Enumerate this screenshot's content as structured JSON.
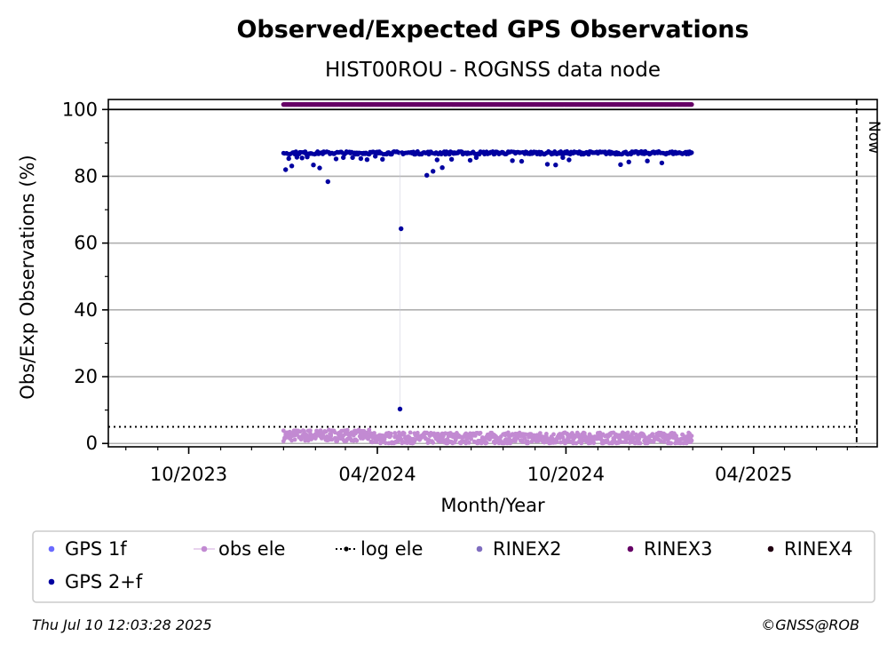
{
  "title": "Observed/Expected GPS Observations",
  "subtitle": "HIST00ROU - ROGNSS data node",
  "footer": {
    "timestamp": "Thu Jul 10 12:03:28 2025",
    "credit": "©GNSS@ROB"
  },
  "chart_data": {
    "type": "scatter",
    "xlabel": "Month/Year",
    "ylabel": "Obs/Exp Observations (%)",
    "x_range": [
      "2023-07-15",
      "2025-07-30"
    ],
    "ylim": [
      -1,
      103
    ],
    "y_ticks": [
      0,
      20,
      40,
      60,
      80,
      100
    ],
    "x_ticks": [
      {
        "date": "2023-10-01",
        "label": "10/2023"
      },
      {
        "date": "2024-04-01",
        "label": "04/2024"
      },
      {
        "date": "2024-10-01",
        "label": "10/2024"
      },
      {
        "date": "2025-04-01",
        "label": "04/2025"
      }
    ],
    "grid": "horizontal",
    "now": {
      "date": "2025-07-10",
      "label": "Now"
    },
    "log_ele_threshold": 5,
    "rinex3_band": {
      "start": "2024-01-01",
      "end": "2025-01-31",
      "value": 101.5
    },
    "series": [
      {
        "name": "GPS 1f",
        "color": "#6a6aff",
        "marker": "dot",
        "points": []
      },
      {
        "name": "obs ele",
        "color": "#c28ad2",
        "marker": "dot-line",
        "summary": "daily values scattered between 0 and 4.5 from 2024-01-01 to 2025-01-31"
      },
      {
        "name": "log ele",
        "color": "#000000",
        "marker": "dotted-line",
        "value": 5
      },
      {
        "name": "RINEX2",
        "color": "#7f6dbf",
        "marker": "dot",
        "points": []
      },
      {
        "name": "RINEX3",
        "color": "#660066",
        "marker": "dot",
        "value": 101.5
      },
      {
        "name": "RINEX4",
        "color": "#200010",
        "marker": "dot",
        "points": []
      },
      {
        "name": "GPS 2+f",
        "color": "#0000a0",
        "marker": "dot",
        "baseline": 87,
        "range": [
          "2024-01-01",
          "2025-01-31"
        ],
        "outliers": [
          {
            "x": "2024-01-03",
            "y": 82.0
          },
          {
            "x": "2024-01-06",
            "y": 85.3
          },
          {
            "x": "2024-01-09",
            "y": 83.1
          },
          {
            "x": "2024-01-14",
            "y": 85.7
          },
          {
            "x": "2024-01-19",
            "y": 85.5
          },
          {
            "x": "2024-01-24",
            "y": 85.8
          },
          {
            "x": "2024-01-30",
            "y": 83.4
          },
          {
            "x": "2024-02-05",
            "y": 82.5
          },
          {
            "x": "2024-02-13",
            "y": 78.4
          },
          {
            "x": "2024-02-21",
            "y": 85.2
          },
          {
            "x": "2024-02-28",
            "y": 85.6
          },
          {
            "x": "2024-03-08",
            "y": 85.6
          },
          {
            "x": "2024-03-16",
            "y": 85.3
          },
          {
            "x": "2024-03-22",
            "y": 85.0
          },
          {
            "x": "2024-03-30",
            "y": 86.0
          },
          {
            "x": "2024-04-06",
            "y": 85.1
          },
          {
            "x": "2024-04-24",
            "y": 64.3
          },
          {
            "x": "2024-04-23",
            "y": 10.3
          },
          {
            "x": "2024-05-19",
            "y": 80.3
          },
          {
            "x": "2024-05-25",
            "y": 81.5
          },
          {
            "x": "2024-05-29",
            "y": 84.9
          },
          {
            "x": "2024-06-03",
            "y": 82.6
          },
          {
            "x": "2024-06-12",
            "y": 85.1
          },
          {
            "x": "2024-06-30",
            "y": 84.8
          },
          {
            "x": "2024-07-06",
            "y": 85.6
          },
          {
            "x": "2024-08-10",
            "y": 84.7
          },
          {
            "x": "2024-08-19",
            "y": 84.5
          },
          {
            "x": "2024-09-13",
            "y": 83.6
          },
          {
            "x": "2024-09-21",
            "y": 83.4
          },
          {
            "x": "2024-09-28",
            "y": 85.6
          },
          {
            "x": "2024-10-04",
            "y": 84.9
          },
          {
            "x": "2024-11-23",
            "y": 83.5
          },
          {
            "x": "2024-12-01",
            "y": 84.3
          },
          {
            "x": "2024-12-19",
            "y": 84.6
          },
          {
            "x": "2025-01-02",
            "y": 84.0
          }
        ]
      }
    ]
  },
  "legend": {
    "items": [
      {
        "label": "GPS 1f",
        "color": "#6a6aff",
        "style": "dot"
      },
      {
        "label": "obs ele",
        "color": "#c28ad2",
        "style": "dot-line"
      },
      {
        "label": "log ele",
        "color": "#000000",
        "style": "dotted-line"
      },
      {
        "label": "RINEX2",
        "color": "#7f6dbf",
        "style": "dot"
      },
      {
        "label": "RINEX3",
        "color": "#660066",
        "style": "dot"
      },
      {
        "label": "RINEX4",
        "color": "#200010",
        "style": "dot"
      },
      {
        "label": "GPS 2+f",
        "color": "#0000a0",
        "style": "dot"
      }
    ]
  }
}
